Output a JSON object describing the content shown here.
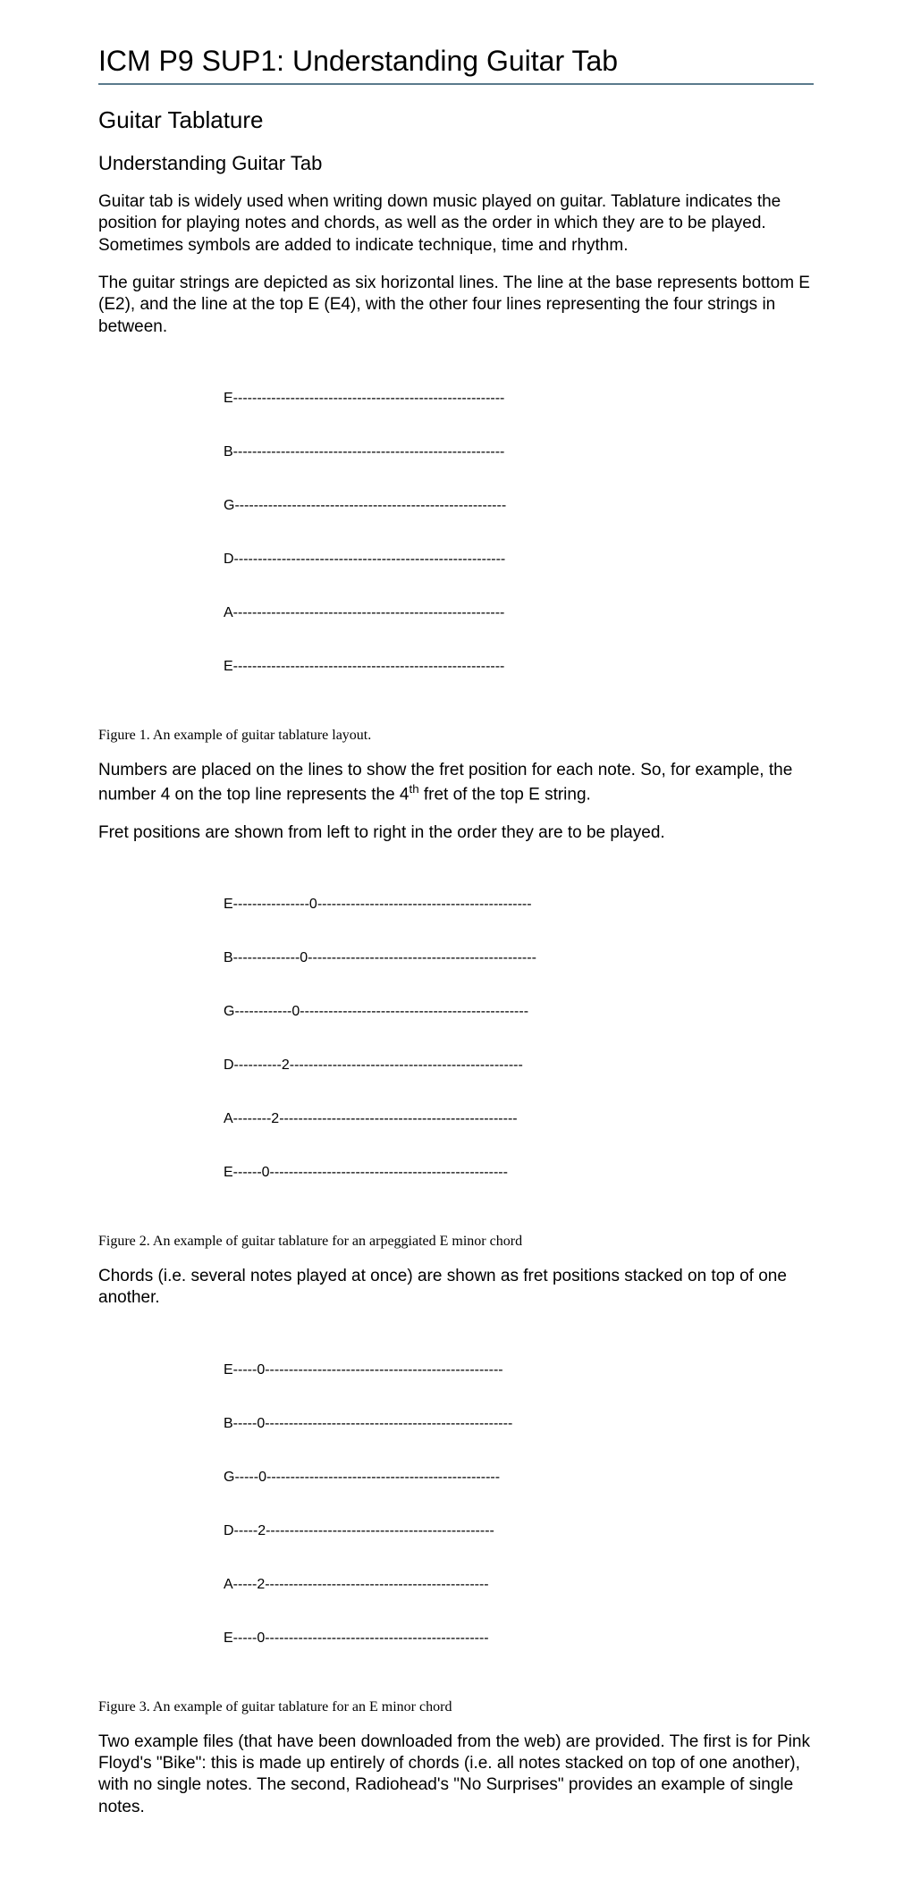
{
  "header": {
    "title_prefix": "ICM P9 SUP1: ",
    "title_main": "Understanding Guitar Tab"
  },
  "section_title": "Guitar Tablature",
  "subsection_title": "Understanding Guitar Tab",
  "para1": "Guitar tab is widely used when writing down music played on guitar. Tablature indicates the position for playing notes and chords, as well as the order in which they are to be played. Sometimes symbols are added to indicate technique, time and rhythm.",
  "para2": "The guitar strings are depicted as six horizontal lines. The line at the base represents bottom E (E2), and the line at the top E (E4), with the other four lines representing the four strings in between.",
  "tab1": {
    "lines": [
      "E---------------------------------------------------------",
      "B---------------------------------------------------------",
      "G---------------------------------------------------------",
      "D---------------------------------------------------------",
      "A---------------------------------------------------------",
      "E---------------------------------------------------------"
    ]
  },
  "caption1": "Figure 1. An example of guitar tablature layout.",
  "para3_a": "Numbers are placed on the lines to show the fret position for each note. So, for example, the number 4 on the top line represents the 4",
  "para3_sup": "th",
  "para3_b": " fret of the top E string.",
  "para4": "Fret positions are shown from left to right in the order they are to be played.",
  "tab2": {
    "lines": [
      "E----------------0---------------------------------------------",
      "B--------------0------------------------------------------------",
      "G------------0------------------------------------------------",
      "D----------2-------------------------------------------------",
      "A--------2--------------------------------------------------",
      "E------0--------------------------------------------------"
    ]
  },
  "caption2": "Figure 2. An example of guitar tablature for an arpeggiated E minor chord",
  "para5": "Chords (i.e. several notes played at once) are shown as fret positions stacked on top of one another.",
  "tab3": {
    "lines": [
      "E-----0--------------------------------------------------",
      "B-----0----------------------------------------------------",
      "G-----0-------------------------------------------------",
      "D-----2------------------------------------------------",
      "A-----2-----------------------------------------------",
      "E-----0-----------------------------------------------"
    ]
  },
  "caption3": "Figure 3. An example of guitar tablature for an E minor chord",
  "para6": "Two example files (that have been downloaded from the web) are provided. The first is for Pink Floyd's \"Bike\": this is made up entirely of chords (i.e. all notes stacked on top of one another), with no single notes. The second, Radiohead's \"No Surprises\" provides an example of single notes.",
  "colors": {
    "rule": "#5a7a8c",
    "text": "#000000",
    "background": "#ffffff"
  },
  "fonts": {
    "body": "Arial",
    "caption": "Times New Roman",
    "title_size": 32,
    "h2_size": 26,
    "h3_size": 22,
    "body_size": 19,
    "tab_size": 16,
    "caption_size": 16
  }
}
